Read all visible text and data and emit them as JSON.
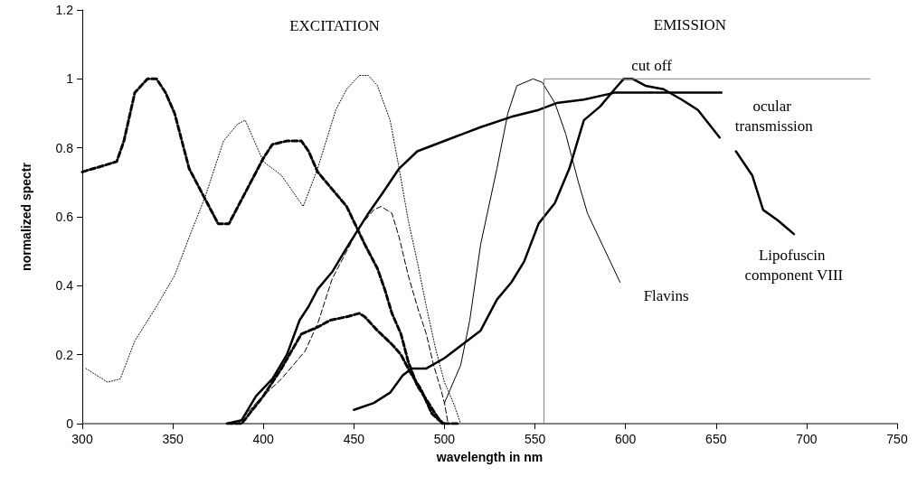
{
  "chart_data": {
    "type": "line",
    "xlabel": "wavelength in nm",
    "ylabel": "normalized spectr",
    "xlim": [
      300,
      750
    ],
    "xticks": [
      300,
      350,
      400,
      450,
      500,
      550,
      600,
      650,
      700,
      750
    ],
    "ylim": [
      0,
      1.2
    ],
    "yticks": [
      0,
      0.2,
      0.4,
      0.6,
      0.8,
      1,
      1.2
    ],
    "grid": false,
    "marker": "none",
    "series": [
      {
        "color": "#000000",
        "line_style": "dashed",
        "x": [
          300,
          319,
          323,
          329,
          336,
          341,
          346,
          351,
          355,
          359,
          367,
          375,
          381,
          388,
          395,
          400,
          405,
          413,
          421,
          425,
          430,
          438,
          446,
          456,
          463,
          467,
          471,
          476,
          480,
          485,
          490,
          496,
          499
        ],
        "values": [
          0.73,
          0.76,
          0.82,
          0.96,
          1.0,
          1.0,
          0.96,
          0.9,
          0.82,
          0.74,
          0.66,
          0.58,
          0.58,
          0.65,
          0.72,
          0.77,
          0.81,
          0.82,
          0.82,
          0.79,
          0.73,
          0.68,
          0.63,
          0.52,
          0.45,
          0.39,
          0.32,
          0.26,
          0.18,
          0.11,
          0.07,
          0.02,
          0
        ]
      },
      {
        "color": "#000000",
        "line_style": "dotted",
        "x": [
          302,
          314,
          321,
          329,
          341,
          351,
          359,
          368,
          378,
          386,
          390,
          400,
          410,
          422,
          430,
          440,
          446,
          453,
          458,
          463,
          470,
          475,
          480,
          485,
          490,
          495,
          500,
          505,
          509
        ],
        "values": [
          0.16,
          0.12,
          0.13,
          0.24,
          0.34,
          0.43,
          0.54,
          0.66,
          0.82,
          0.87,
          0.88,
          0.76,
          0.72,
          0.63,
          0.74,
          0.91,
          0.97,
          1.01,
          1.01,
          0.98,
          0.88,
          0.74,
          0.59,
          0.47,
          0.34,
          0.22,
          0.12,
          0.06,
          0
        ]
      },
      {
        "color": "#000000",
        "line_style": "dashed",
        "x": [
          386,
          396,
          410,
          423,
          430,
          438,
          446,
          453,
          461,
          465,
          471,
          475,
          480,
          485,
          490,
          494,
          498,
          500,
          502
        ],
        "values": [
          0,
          0.06,
          0.13,
          0.21,
          0.29,
          0.42,
          0.5,
          0.57,
          0.62,
          0.63,
          0.61,
          0.54,
          0.43,
          0.34,
          0.26,
          0.17,
          0.1,
          0.06,
          0
        ]
      },
      {
        "color": "#000000",
        "line_style": "dashed",
        "x": [
          380,
          388,
          400,
          410,
          421,
          430,
          437,
          446,
          453,
          456,
          463,
          471,
          476,
          481,
          487,
          493,
          497,
          500,
          508
        ],
        "values": [
          0,
          0,
          0.08,
          0.16,
          0.26,
          0.28,
          0.3,
          0.31,
          0.32,
          0.31,
          0.27,
          0.23,
          0.2,
          0.15,
          0.1,
          0.03,
          0.01,
          0,
          0
        ]
      },
      {
        "name": "ocular transmission",
        "color": "#000000",
        "line_style": "solid",
        "x": [
          380,
          388,
          396,
          405,
          413,
          420,
          425,
          430,
          438,
          446,
          458,
          466,
          475,
          485,
          500,
          520,
          537,
          552,
          562,
          577,
          594,
          653
        ],
        "values": [
          0,
          0.01,
          0.08,
          0.13,
          0.2,
          0.3,
          0.34,
          0.39,
          0.44,
          0.51,
          0.61,
          0.67,
          0.74,
          0.79,
          0.82,
          0.86,
          0.89,
          0.91,
          0.93,
          0.94,
          0.96,
          0.96
        ]
      },
      {
        "name": "Flavins",
        "color": "#000000",
        "line_style": "solid",
        "x": [
          500,
          509,
          514,
          520,
          529,
          535,
          540,
          549,
          554,
          561,
          567,
          574,
          579,
          588,
          597
        ],
        "values": [
          0.06,
          0.17,
          0.3,
          0.52,
          0.74,
          0.9,
          0.98,
          1.0,
          0.99,
          0.93,
          0.84,
          0.7,
          0.61,
          0.51,
          0.41
        ]
      },
      {
        "name": "Lipofuscin component VIII",
        "color": "#000000",
        "line_style": "solid",
        "x": [
          450,
          461,
          470,
          477,
          482,
          490,
          500,
          510,
          520,
          529,
          537,
          544,
          552,
          561,
          569,
          577,
          586,
          594,
          599,
          604,
          611,
          621,
          631,
          640,
          652,
          656,
          661,
          670,
          676,
          684,
          693
        ],
        "values": [
          0.04,
          0.06,
          0.09,
          0.14,
          0.16,
          0.16,
          0.19,
          0.23,
          0.27,
          0.36,
          0.41,
          0.47,
          0.58,
          0.64,
          0.74,
          0.88,
          0.92,
          0.97,
          1.0,
          1.0,
          0.98,
          0.97,
          0.94,
          0.91,
          0.83,
          null,
          0.79,
          0.72,
          0.62,
          0.59,
          0.55
        ]
      },
      {
        "name": "cut off",
        "color": "#808080",
        "line_style": "solid",
        "x": [
          555,
          555,
          735
        ],
        "values": [
          0,
          1,
          1
        ]
      }
    ],
    "annotations": [
      "EXCITATION",
      "EMISSION"
    ]
  }
}
